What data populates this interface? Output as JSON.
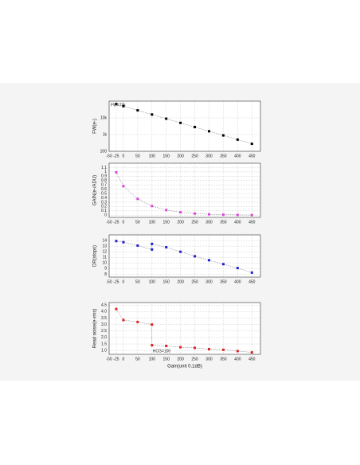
{
  "chart_data": [
    {
      "type": "line",
      "ylabel": "FW(e-)",
      "annotation": "FW=73k",
      "log_y": true,
      "x": [
        -25,
        0,
        50,
        100,
        150,
        200,
        250,
        300,
        350,
        400,
        450
      ],
      "series": [
        {
          "color": "#000000",
          "values": [
            67000,
            50000,
            28100,
            15800,
            8900,
            5000,
            2810,
            1580,
            890,
            500,
            281
          ]
        }
      ],
      "xlim": [
        -50,
        480
      ],
      "xticks": [
        -50,
        -25,
        0,
        50,
        100,
        150,
        200,
        250,
        300,
        350,
        400,
        450
      ],
      "ylim": [
        100,
        100000
      ],
      "yticks": [
        100,
        {
          "value": 1000,
          "label": "1k"
        },
        {
          "value": 10000,
          "label": "10k"
        }
      ],
      "grid": true
    },
    {
      "type": "line",
      "ylabel": "GAIN(e-/ADU)",
      "x": [
        -25,
        0,
        50,
        100,
        150,
        200,
        250,
        300,
        350,
        400,
        450
      ],
      "series": [
        {
          "color": "#e040e0",
          "values": [
            0.99,
            0.67,
            0.377,
            0.212,
            0.119,
            0.067,
            0.038,
            0.021,
            0.012,
            0.0067,
            0.0038
          ]
        }
      ],
      "xlim": [
        -50,
        480
      ],
      "xticks": [
        -50,
        -25,
        0,
        50,
        100,
        150,
        200,
        250,
        300,
        350,
        400,
        450
      ],
      "ylim": [
        -0.05,
        1.2
      ],
      "yticks": [
        0,
        0.1,
        0.2,
        0.3,
        0.4,
        0.5,
        0.6,
        0.7,
        0.8,
        0.9,
        1,
        1.1
      ],
      "grid": true
    },
    {
      "type": "line",
      "ylabel": "DR(stops)",
      "x": [
        -25,
        0,
        50,
        100,
        100,
        150,
        200,
        250,
        300,
        350,
        400,
        450
      ],
      "series": [
        {
          "color": "#2020d0",
          "values": [
            13.9,
            13.7,
            13.1,
            12.4,
            13.4,
            12.8,
            12.0,
            11.2,
            10.5,
            9.8,
            9.1,
            8.3
          ]
        }
      ],
      "xlim": [
        -50,
        480
      ],
      "xticks": [
        -50,
        -25,
        0,
        50,
        100,
        150,
        200,
        250,
        300,
        350,
        400,
        450
      ],
      "ylim": [
        7.5,
        15
      ],
      "yticks": [
        8,
        9,
        10,
        11,
        12,
        13,
        14
      ],
      "grid": true
    },
    {
      "type": "line",
      "ylabel": "Read noise(e-rms)",
      "xlabel": "Gain(unit 0.1dB)",
      "annotation": "HCG=100",
      "x": [
        -25,
        0,
        50,
        100,
        100,
        150,
        200,
        250,
        300,
        350,
        400,
        450
      ],
      "series": [
        {
          "color": "#e02020",
          "values": [
            4.2,
            3.35,
            3.2,
            3.0,
            1.4,
            1.35,
            1.25,
            1.2,
            1.1,
            1.05,
            0.95,
            0.85
          ]
        }
      ],
      "xlim": [
        -50,
        480
      ],
      "xticks": [
        -50,
        -25,
        0,
        50,
        100,
        150,
        200,
        250,
        300,
        350,
        400,
        450
      ],
      "ylim": [
        0.7,
        4.7
      ],
      "yticks": [
        {
          "value": 1,
          "label": "1.0"
        },
        1.5,
        {
          "value": 2,
          "label": "2.0"
        },
        2.5,
        {
          "value": 3,
          "label": "3.0"
        },
        3.5,
        {
          "value": 4,
          "label": "4.0"
        },
        4.5
      ],
      "grid": true
    }
  ]
}
